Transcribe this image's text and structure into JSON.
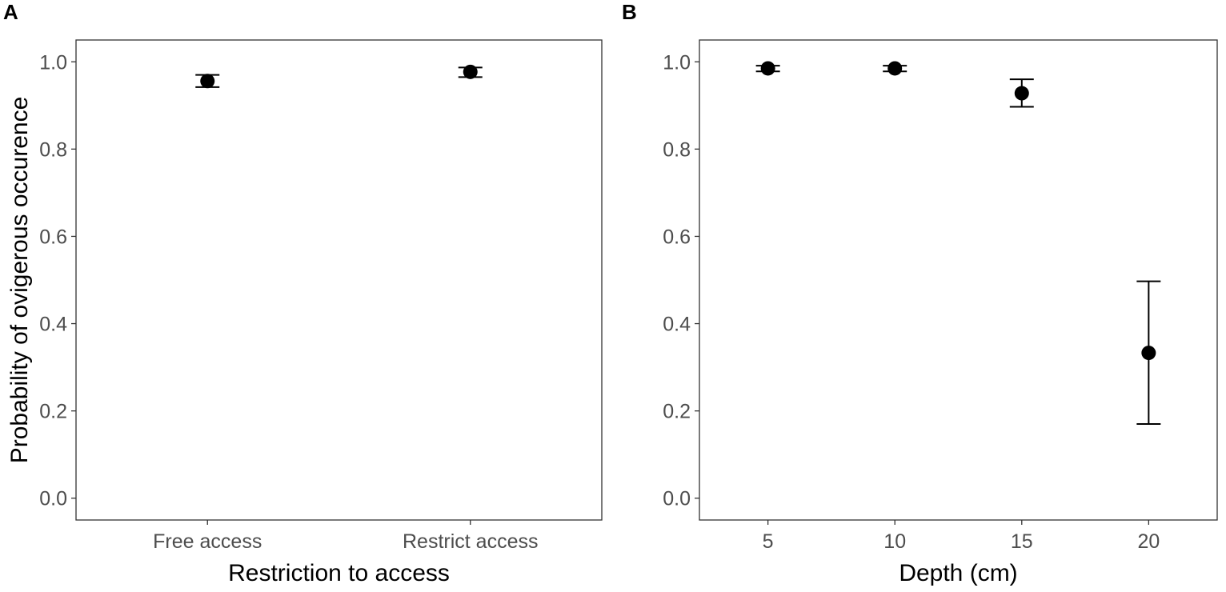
{
  "chart_data": [
    {
      "panel": "A",
      "type": "scatter",
      "title": "",
      "xlabel": "Restriction to access",
      "ylabel": "Probability of ovigerous occurence",
      "x_type": "categorical",
      "categories": [
        "Free access",
        "Restrict access"
      ],
      "ylim": [
        -0.05,
        1.05
      ],
      "yticks": [
        0.0,
        0.2,
        0.4,
        0.6,
        0.8,
        1.0
      ],
      "ytick_labels": [
        "0.0",
        "0.2",
        "0.4",
        "0.6",
        "0.8",
        "1.0"
      ],
      "grid": false,
      "points": [
        {
          "x": "Free access",
          "y": 0.956,
          "lower": 0.942,
          "upper": 0.97
        },
        {
          "x": "Restrict access",
          "y": 0.977,
          "lower": 0.965,
          "upper": 0.987
        }
      ]
    },
    {
      "panel": "B",
      "type": "scatter",
      "title": "",
      "xlabel": "Depth (cm)",
      "ylabel": "",
      "x_type": "numeric",
      "xlim": [
        2.3,
        22.7
      ],
      "xticks": [
        5,
        10,
        15,
        20
      ],
      "xtick_labels": [
        "5",
        "10",
        "15",
        "20"
      ],
      "ylim": [
        -0.05,
        1.05
      ],
      "yticks": [
        0.0,
        0.2,
        0.4,
        0.6,
        0.8,
        1.0
      ],
      "ytick_labels": [
        "0.0",
        "0.2",
        "0.4",
        "0.6",
        "0.8",
        "1.0"
      ],
      "grid": false,
      "points": [
        {
          "x": 5,
          "y": 0.985,
          "lower": 0.978,
          "upper": 0.991
        },
        {
          "x": 10,
          "y": 0.985,
          "lower": 0.978,
          "upper": 0.991
        },
        {
          "x": 15,
          "y": 0.928,
          "lower": 0.897,
          "upper": 0.96
        },
        {
          "x": 20,
          "y": 0.333,
          "lower": 0.17,
          "upper": 0.497
        }
      ]
    }
  ]
}
